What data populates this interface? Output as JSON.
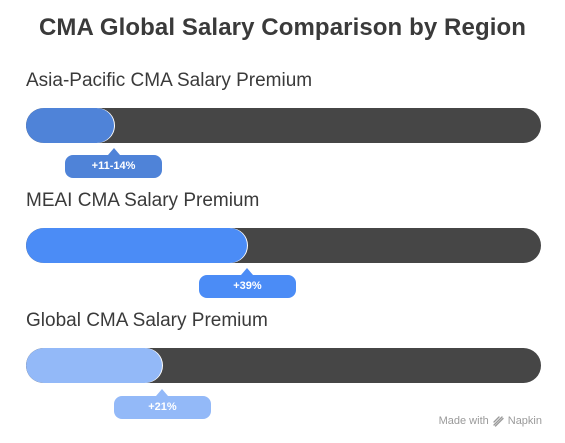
{
  "chart_data": {
    "type": "bar",
    "title": "CMA Global Salary Comparison by Region",
    "categories": [
      "Asia-Pacific CMA Salary Premium",
      "MEAI CMA Salary Premium",
      "Global CMA Salary Premium"
    ],
    "value_labels": [
      "+11-14%",
      "+39%",
      "+21%"
    ],
    "values": [
      17,
      43,
      26.5
    ],
    "value_unit": "percent of track length",
    "colors": {
      "track": "#464646",
      "fills": [
        "#4f83d8",
        "#4b8cf6",
        "#93b9f8"
      ]
    }
  },
  "watermark": {
    "text": "Made with",
    "brand": "Napkin",
    "icon": "napkin-logo-icon"
  }
}
